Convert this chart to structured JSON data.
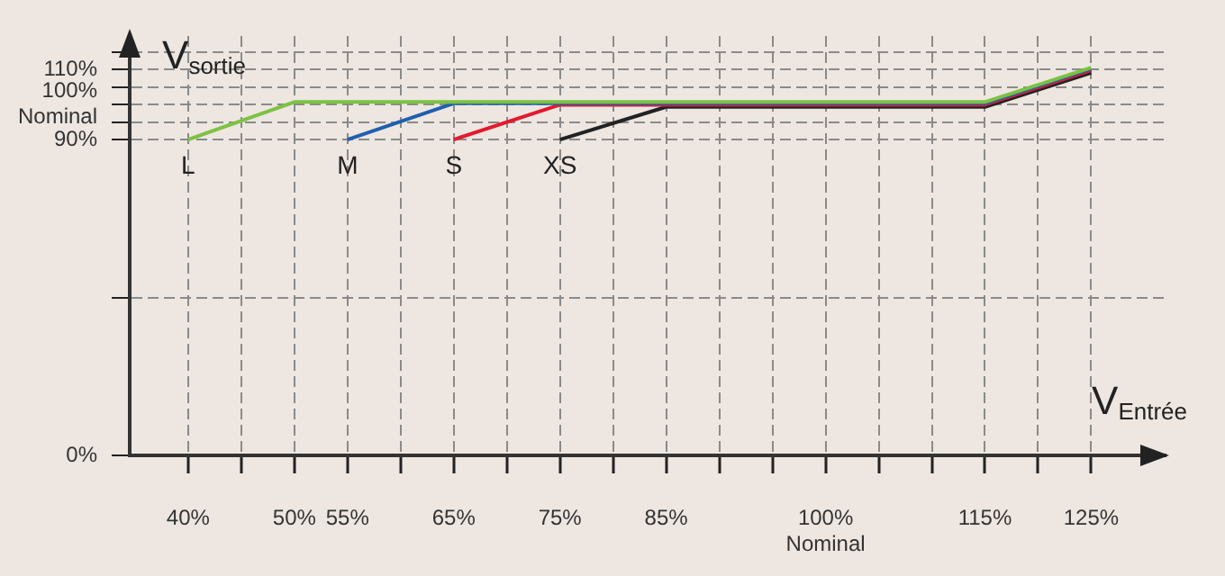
{
  "chart_data": {
    "type": "line",
    "xlabel": "V$_{Entrée}$",
    "ylabel": "V$_{sortie}$",
    "xlim": [
      34.5,
      132
    ],
    "ylim": [
      0,
      119.5
    ],
    "xticks": [
      {
        "value": 40,
        "label": "40%"
      },
      {
        "value": 45,
        "label": null
      },
      {
        "value": 50,
        "label": "50%"
      },
      {
        "value": 55,
        "label": "55%"
      },
      {
        "value": 60,
        "label": null
      },
      {
        "value": 65,
        "label": "65%"
      },
      {
        "value": 70,
        "label": null
      },
      {
        "value": 75,
        "label": "75%"
      },
      {
        "value": 80,
        "label": null
      },
      {
        "value": 85,
        "label": "85%"
      },
      {
        "value": 90,
        "label": null
      },
      {
        "value": 95,
        "label": null
      },
      {
        "value": 100,
        "label": "100%\nNominal"
      },
      {
        "value": 105,
        "label": null
      },
      {
        "value": 110,
        "label": null
      },
      {
        "value": 115,
        "label": "115%"
      },
      {
        "value": 120,
        "label": null
      },
      {
        "value": 125,
        "label": "125%"
      }
    ],
    "yticks": [
      {
        "value": 0,
        "label": "0%"
      },
      {
        "value": 45,
        "label": null
      },
      {
        "value": 90,
        "label": "90%"
      },
      {
        "value": 95,
        "label": null
      },
      {
        "value": 100,
        "label": "100%\nNominal"
      },
      {
        "value": 105,
        "label": null
      },
      {
        "value": 110,
        "label": "110%"
      },
      {
        "value": 115,
        "label": null
      }
    ],
    "grid": true,
    "series": [
      {
        "name": "L",
        "color": "#7cc242",
        "x": [
          40,
          50,
          115,
          125
        ],
        "values": [
          90,
          100.7,
          100.7,
          110.5
        ]
      },
      {
        "name": "M",
        "color": "#1f5fae",
        "x": [
          55,
          65,
          115,
          125
        ],
        "values": [
          90,
          100.3,
          100.3,
          110.2
        ]
      },
      {
        "name": "S",
        "color": "#e3192d",
        "x": [
          65,
          75,
          115,
          125
        ],
        "values": [
          90,
          99.9,
          99.9,
          109.7
        ]
      },
      {
        "name": "XS",
        "color": "#222222",
        "x": [
          75,
          85,
          115,
          125
        ],
        "values": [
          90,
          99.3,
          99.3,
          109
        ]
      }
    ]
  }
}
